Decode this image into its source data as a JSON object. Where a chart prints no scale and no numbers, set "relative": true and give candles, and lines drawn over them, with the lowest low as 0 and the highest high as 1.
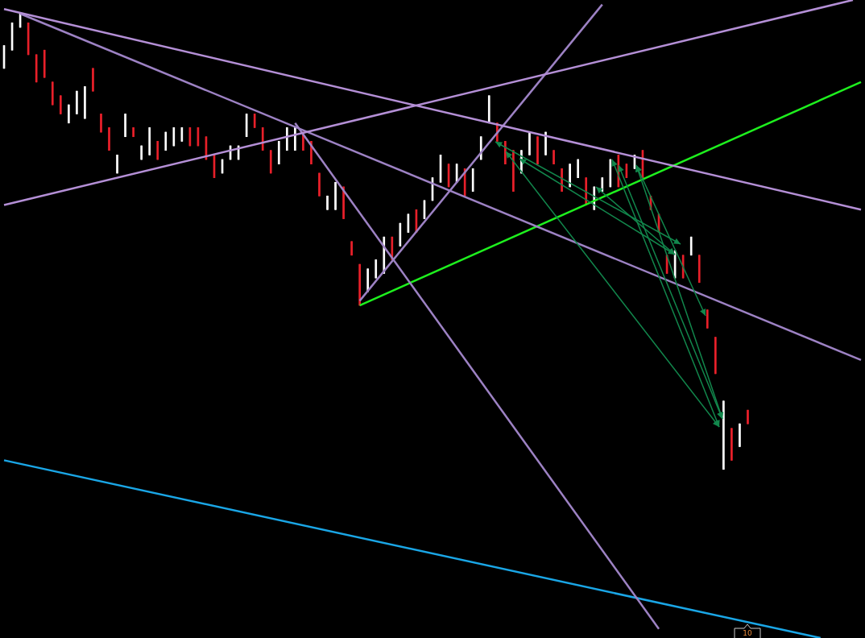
{
  "chart_data": {
    "type": "candlestick",
    "relative": true,
    "legend": false,
    "colors": [
      "#ffffff",
      "#ffffff",
      "#ffffff",
      "#e8202a",
      "#e8202a",
      "#e8202a",
      "#e8202a",
      "#e8202a",
      "#ffffff",
      "#ffffff",
      "#ffffff",
      "#e8202a",
      "#e8202a",
      "#e8202a",
      "#ffffff",
      "#ffffff",
      "#e8202a",
      "#ffffff",
      "#ffffff",
      "#e8202a",
      "#ffffff",
      "#ffffff",
      "#ffffff",
      "#e8202a",
      "#e8202a",
      "#e8202a",
      "#e8202a",
      "#ffffff",
      "#ffffff",
      "#ffffff",
      "#ffffff",
      "#e8202a",
      "#e8202a",
      "#e8202a",
      "#ffffff",
      "#ffffff",
      "#ffffff",
      "#e8202a",
      "#e8202a",
      "#e8202a",
      "#ffffff",
      "#ffffff",
      "#e8202a",
      "#e8202a",
      "#e8202a",
      "#ffffff",
      "#ffffff",
      "#ffffff",
      "#e8202a",
      "#ffffff",
      "#ffffff",
      "#e8202a",
      "#ffffff",
      "#ffffff",
      "#ffffff",
      "#e8202a",
      "#ffffff",
      "#e8202a",
      "#ffffff",
      "#ffffff",
      "#ffffff",
      "#e8202a",
      "#e8202a",
      "#e8202a",
      "#ffffff",
      "#ffffff",
      "#e8202a",
      "#ffffff",
      "#e8202a",
      "#e8202a",
      "#ffffff",
      "#ffffff",
      "#e8202a",
      "#ffffff",
      "#ffffff",
      "#ffffff",
      "#e8202a",
      "#e8202a",
      "#ffffff",
      "#e8202a",
      "#e8202a",
      "#e8202a",
      "#e8202a",
      "#ffffff",
      "#e8202a",
      "#ffffff",
      "#e8202a",
      "#e8202a",
      "#e8202a",
      "#ffffff",
      "#e8202a",
      "#ffffff",
      "#e8202a",
      null,
      null,
      null,
      null,
      null,
      null,
      null,
      null,
      null,
      null,
      null,
      null,
      null,
      null
    ],
    "categories": [
      null,
      null,
      null,
      null,
      null,
      null,
      null,
      null,
      null,
      null,
      null,
      null,
      null,
      null,
      null,
      null,
      null,
      null,
      null,
      null,
      null,
      null,
      null,
      null,
      null,
      null,
      null,
      null,
      null,
      null,
      null,
      null,
      null,
      null,
      null,
      null,
      null,
      null,
      null,
      null,
      null,
      null,
      null,
      null,
      null,
      null,
      null,
      null,
      null,
      null,
      null,
      null,
      null,
      null,
      null,
      null,
      null,
      null,
      null,
      null,
      null,
      null,
      null,
      null,
      null,
      null,
      null,
      null,
      null,
      null,
      null,
      null,
      null,
      null,
      null,
      null,
      null,
      null,
      null,
      null,
      null,
      null,
      null,
      null,
      null,
      null,
      null,
      null,
      null,
      null,
      null,
      null,
      null,
      null,
      null,
      null,
      null,
      null,
      null,
      null,
      null,
      null,
      null,
      null,
      null,
      null,
      null
    ],
    "ohlc": [
      [
        0.88,
        0.93,
        0.88,
        0.93
      ],
      [
        0.92,
        0.98,
        0.92,
        0.98
      ],
      [
        0.97,
        1.0,
        0.97,
        1.0
      ],
      [
        0.98,
        0.98,
        0.91,
        0.91
      ],
      [
        0.91,
        0.91,
        0.85,
        0.85
      ],
      [
        0.92,
        0.92,
        0.86,
        0.86
      ],
      [
        0.85,
        0.85,
        0.8,
        0.8
      ],
      [
        0.82,
        0.82,
        0.78,
        0.78
      ],
      [
        0.76,
        0.8,
        0.76,
        0.8
      ],
      [
        0.78,
        0.83,
        0.78,
        0.83
      ],
      [
        0.77,
        0.84,
        0.77,
        0.84
      ],
      [
        0.88,
        0.88,
        0.83,
        0.83
      ],
      [
        0.78,
        0.78,
        0.74,
        0.74
      ],
      [
        0.75,
        0.75,
        0.7,
        0.7
      ],
      [
        0.65,
        0.69,
        0.65,
        0.69
      ],
      [
        0.73,
        0.78,
        0.73,
        0.78
      ],
      [
        0.75,
        0.75,
        0.73,
        0.73
      ],
      [
        0.68,
        0.71,
        0.68,
        0.71
      ],
      [
        0.69,
        0.75,
        0.69,
        0.75
      ],
      [
        0.72,
        0.72,
        0.68,
        0.68
      ],
      [
        0.7,
        0.74,
        0.7,
        0.74
      ],
      [
        0.71,
        0.75,
        0.71,
        0.75
      ],
      [
        0.72,
        0.75,
        0.72,
        0.75
      ],
      [
        0.75,
        0.75,
        0.71,
        0.71
      ],
      [
        0.75,
        0.75,
        0.71,
        0.71
      ],
      [
        0.73,
        0.73,
        0.68,
        0.68
      ],
      [
        0.69,
        0.69,
        0.64,
        0.64
      ],
      [
        0.65,
        0.68,
        0.65,
        0.68
      ],
      [
        0.68,
        0.71,
        0.68,
        0.71
      ],
      [
        0.68,
        0.71,
        0.68,
        0.71
      ],
      [
        0.73,
        0.78,
        0.73,
        0.78
      ],
      [
        0.78,
        0.78,
        0.75,
        0.75
      ],
      [
        0.75,
        0.75,
        0.7,
        0.7
      ],
      [
        0.7,
        0.7,
        0.65,
        0.65
      ],
      [
        0.67,
        0.72,
        0.67,
        0.72
      ],
      [
        0.7,
        0.75,
        0.7,
        0.75
      ],
      [
        0.7,
        0.75,
        0.7,
        0.75
      ],
      [
        0.74,
        0.74,
        0.7,
        0.7
      ],
      [
        0.72,
        0.72,
        0.67,
        0.67
      ],
      [
        0.65,
        0.65,
        0.6,
        0.6
      ],
      [
        0.57,
        0.6,
        0.57,
        0.6
      ],
      [
        0.57,
        0.63,
        0.57,
        0.63
      ],
      [
        0.62,
        0.62,
        0.55,
        0.55
      ],
      [
        0.5,
        0.5,
        0.47,
        0.47
      ],
      [
        0.45,
        0.45,
        0.36,
        0.36
      ],
      [
        0.39,
        0.44,
        0.39,
        0.44
      ],
      [
        0.42,
        0.46,
        0.42,
        0.46
      ],
      [
        0.43,
        0.51,
        0.43,
        0.51
      ],
      [
        0.51,
        0.51,
        0.46,
        0.46
      ],
      [
        0.49,
        0.54,
        0.49,
        0.54
      ],
      [
        0.52,
        0.56,
        0.52,
        0.56
      ],
      [
        0.57,
        0.57,
        0.52,
        0.52
      ],
      [
        0.55,
        0.59,
        0.55,
        0.59
      ],
      [
        0.59,
        0.64,
        0.59,
        0.64
      ],
      [
        0.63,
        0.69,
        0.63,
        0.69
      ],
      [
        0.67,
        0.67,
        0.62,
        0.62
      ],
      [
        0.63,
        0.67,
        0.63,
        0.67
      ],
      [
        0.66,
        0.66,
        0.6,
        0.6
      ],
      [
        0.61,
        0.66,
        0.61,
        0.66
      ],
      [
        0.68,
        0.73,
        0.68,
        0.73
      ],
      [
        0.76,
        0.82,
        0.76,
        0.82
      ],
      [
        0.76,
        0.76,
        0.72,
        0.72
      ],
      [
        0.72,
        0.72,
        0.67,
        0.67
      ],
      [
        0.7,
        0.7,
        0.61,
        0.61
      ],
      [
        0.65,
        0.7,
        0.65,
        0.7
      ],
      [
        0.69,
        0.74,
        0.69,
        0.74
      ],
      [
        0.73,
        0.73,
        0.67,
        0.67
      ],
      [
        0.69,
        0.74,
        0.69,
        0.74
      ],
      [
        0.7,
        0.7,
        0.67,
        0.67
      ],
      [
        0.66,
        0.66,
        0.61,
        0.61
      ],
      [
        0.62,
        0.67,
        0.62,
        0.67
      ],
      [
        0.64,
        0.68,
        0.64,
        0.68
      ],
      [
        0.64,
        0.64,
        0.58,
        0.58
      ],
      [
        0.57,
        0.62,
        0.57,
        0.62
      ],
      [
        0.61,
        0.64,
        0.61,
        0.64
      ],
      [
        0.62,
        0.68,
        0.62,
        0.68
      ],
      [
        0.69,
        0.69,
        0.62,
        0.62
      ],
      [
        0.67,
        0.67,
        0.64,
        0.64
      ],
      [
        0.66,
        0.69,
        0.66,
        0.69
      ],
      [
        0.7,
        0.7,
        0.64,
        0.64
      ],
      [
        0.6,
        0.6,
        0.57,
        0.57
      ],
      [
        0.56,
        0.56,
        0.52,
        0.52
      ],
      [
        0.47,
        0.47,
        0.43,
        0.43
      ],
      [
        0.42,
        0.48,
        0.42,
        0.48
      ],
      [
        0.47,
        0.47,
        0.42,
        0.42
      ],
      [
        0.47,
        0.51,
        0.47,
        0.51
      ],
      [
        0.47,
        0.47,
        0.41,
        0.41
      ],
      [
        0.35,
        0.35,
        0.31,
        0.31
      ],
      [
        0.29,
        0.29,
        0.21,
        0.21
      ],
      [
        0.0,
        0.15,
        0.0,
        0.15
      ],
      [
        0.09,
        0.09,
        0.02,
        0.02
      ],
      [
        0.05,
        0.1,
        0.05,
        0.1
      ],
      [
        0.13,
        0.13,
        0.1,
        0.1
      ],
      null,
      null,
      null,
      null,
      null,
      null,
      null,
      null,
      null,
      null,
      null,
      null,
      null,
      null
    ],
    "series": [
      {
        "type": "line",
        "color": "#b48fd6",
        "values": [
          1.01,
          null,
          null,
          null,
          null,
          null,
          null,
          null,
          null,
          null,
          null,
          null,
          null,
          null,
          null,
          null,
          null,
          null,
          null,
          null,
          null,
          null,
          null,
          null,
          null,
          null,
          null,
          null,
          null,
          null,
          null,
          null,
          null,
          null,
          null,
          null,
          null,
          null,
          null,
          null,
          null,
          null,
          null,
          null,
          null,
          null,
          null,
          null,
          null,
          null,
          null,
          null,
          null,
          null,
          null,
          null,
          null,
          null,
          null,
          null,
          null,
          null,
          null,
          null,
          null,
          null,
          null,
          null,
          null,
          null,
          null,
          null,
          null,
          null,
          null,
          null,
          null,
          null,
          null,
          null,
          null,
          null,
          null,
          null,
          null,
          null,
          null,
          null,
          null,
          null,
          null,
          null,
          null,
          null,
          null,
          null,
          null,
          null,
          null,
          null,
          null,
          null,
          null,
          null,
          null,
          null,
          0.57
        ]
      },
      {
        "type": "line",
        "color": "#b48fd6",
        "values": [
          0.58,
          null,
          null,
          null,
          null,
          null,
          null,
          null,
          null,
          null,
          null,
          null,
          null,
          null,
          null,
          null,
          null,
          null,
          null,
          null,
          null,
          null,
          null,
          null,
          null,
          null,
          null,
          null,
          null,
          null,
          null,
          null,
          null,
          null,
          null,
          null,
          null,
          null,
          null,
          null,
          null,
          null,
          null,
          null,
          null,
          null,
          null,
          null,
          null,
          null,
          null,
          null,
          null,
          null,
          null,
          null,
          null,
          null,
          null,
          null,
          null,
          null,
          null,
          null,
          null,
          null,
          null,
          null,
          null,
          null,
          null,
          null,
          null,
          null,
          null,
          null,
          null,
          null,
          null,
          null,
          null,
          null,
          null,
          null,
          null,
          null,
          null,
          null,
          null,
          null,
          null,
          null,
          null,
          null,
          null,
          null,
          null,
          null,
          null,
          null,
          null,
          null,
          null,
          null,
          null,
          1.03,
          null
        ]
      },
      {
        "type": "line",
        "color": "#9d82c4",
        "values": [
          null,
          null,
          1.0,
          null,
          null,
          null,
          null,
          null,
          null,
          null,
          null,
          null,
          null,
          null,
          null,
          null,
          null,
          null,
          null,
          null,
          null,
          null,
          null,
          null,
          null,
          null,
          null,
          null,
          null,
          null,
          null,
          null,
          null,
          null,
          null,
          null,
          null,
          null,
          null,
          null,
          null,
          null,
          null,
          null,
          null,
          null,
          null,
          null,
          null,
          null,
          null,
          null,
          null,
          null,
          null,
          null,
          null,
          null,
          null,
          null,
          null,
          null,
          null,
          null,
          null,
          null,
          null,
          null,
          null,
          null,
          null,
          null,
          null,
          null,
          null,
          null,
          null,
          null,
          null,
          null,
          null,
          null,
          null,
          null,
          null,
          null,
          null,
          null,
          null,
          null,
          null,
          null,
          null,
          null,
          null,
          null,
          null,
          null,
          null,
          null,
          null,
          null,
          null,
          null,
          null,
          null,
          0.24
        ]
      },
      {
        "type": "line",
        "color": "#9d82c4",
        "values": [
          null,
          null,
          null,
          null,
          null,
          null,
          null,
          null,
          null,
          null,
          null,
          null,
          null,
          null,
          null,
          null,
          null,
          null,
          null,
          null,
          null,
          null,
          null,
          null,
          null,
          null,
          null,
          null,
          null,
          null,
          null,
          null,
          null,
          null,
          null,
          null,
          0.76,
          null,
          null,
          null,
          null,
          null,
          null,
          null,
          null,
          null,
          null,
          null,
          null,
          null,
          null,
          null,
          null,
          null,
          null,
          null,
          null,
          null,
          null,
          null,
          null,
          null,
          null,
          null,
          null,
          null,
          null,
          null,
          null,
          null,
          null,
          null,
          null,
          null,
          null,
          null,
          null,
          null,
          null,
          null,
          null,
          -0.35,
          null,
          null,
          null,
          null,
          null,
          null,
          null,
          null,
          null,
          null,
          null,
          null,
          null,
          null,
          null,
          null,
          null,
          null,
          null,
          null,
          null,
          null,
          null,
          null,
          null
        ]
      },
      {
        "type": "line",
        "color": "#9d82c4",
        "values": [
          null,
          null,
          null,
          null,
          null,
          null,
          null,
          null,
          null,
          null,
          null,
          null,
          null,
          null,
          null,
          null,
          null,
          null,
          null,
          null,
          null,
          null,
          null,
          null,
          null,
          null,
          null,
          null,
          null,
          null,
          null,
          null,
          null,
          null,
          null,
          null,
          null,
          null,
          null,
          null,
          null,
          null,
          null,
          null,
          0.37,
          null,
          null,
          null,
          null,
          null,
          null,
          null,
          null,
          null,
          null,
          null,
          null,
          null,
          null,
          null,
          null,
          null,
          null,
          null,
          null,
          null,
          null,
          null,
          null,
          null,
          null,
          null,
          null,
          null,
          1.02,
          null,
          null,
          null,
          null,
          null,
          null,
          null,
          null,
          null,
          null,
          null,
          null,
          null,
          null,
          null,
          null,
          null,
          null,
          null,
          null,
          null,
          null,
          null,
          null,
          null,
          null,
          null,
          null,
          null,
          null,
          null,
          null
        ]
      },
      {
        "type": "line",
        "color": "#1ef01e",
        "values": [
          null,
          null,
          null,
          null,
          null,
          null,
          null,
          null,
          null,
          null,
          null,
          null,
          null,
          null,
          null,
          null,
          null,
          null,
          null,
          null,
          null,
          null,
          null,
          null,
          null,
          null,
          null,
          null,
          null,
          null,
          null,
          null,
          null,
          null,
          null,
          null,
          null,
          null,
          null,
          null,
          null,
          null,
          null,
          null,
          0.36,
          null,
          null,
          null,
          null,
          null,
          null,
          null,
          null,
          null,
          null,
          null,
          null,
          null,
          null,
          null,
          null,
          null,
          null,
          null,
          null,
          null,
          null,
          null,
          null,
          null,
          null,
          null,
          null,
          null,
          null,
          null,
          null,
          null,
          null,
          null,
          null,
          null,
          null,
          null,
          null,
          null,
          null,
          null,
          null,
          null,
          null,
          null,
          null,
          null,
          null,
          null,
          null,
          null,
          null,
          null,
          null,
          null,
          null,
          null,
          null,
          null,
          0.85
        ]
      },
      {
        "type": "line",
        "color": "#1aa6e6",
        "values": [
          0.02,
          null,
          null,
          null,
          null,
          null,
          null,
          null,
          null,
          null,
          null,
          null,
          null,
          null,
          null,
          null,
          null,
          null,
          null,
          null,
          null,
          null,
          null,
          null,
          null,
          null,
          null,
          null,
          null,
          null,
          null,
          null,
          null,
          null,
          null,
          null,
          null,
          null,
          null,
          null,
          null,
          null,
          null,
          null,
          null,
          null,
          null,
          null,
          null,
          null,
          null,
          null,
          null,
          null,
          null,
          null,
          null,
          null,
          null,
          null,
          null,
          null,
          null,
          null,
          null,
          null,
          null,
          null,
          null,
          null,
          null,
          null,
          null,
          null,
          null,
          null,
          null,
          null,
          null,
          null,
          null,
          null,
          null,
          null,
          null,
          null,
          null,
          null,
          null,
          null,
          null,
          null,
          null,
          null,
          null,
          null,
          null,
          null,
          null,
          null,
          null,
          -0.37,
          null,
          null,
          null,
          null,
          null
        ]
      }
    ],
    "annotations": [
      "10"
    ]
  }
}
